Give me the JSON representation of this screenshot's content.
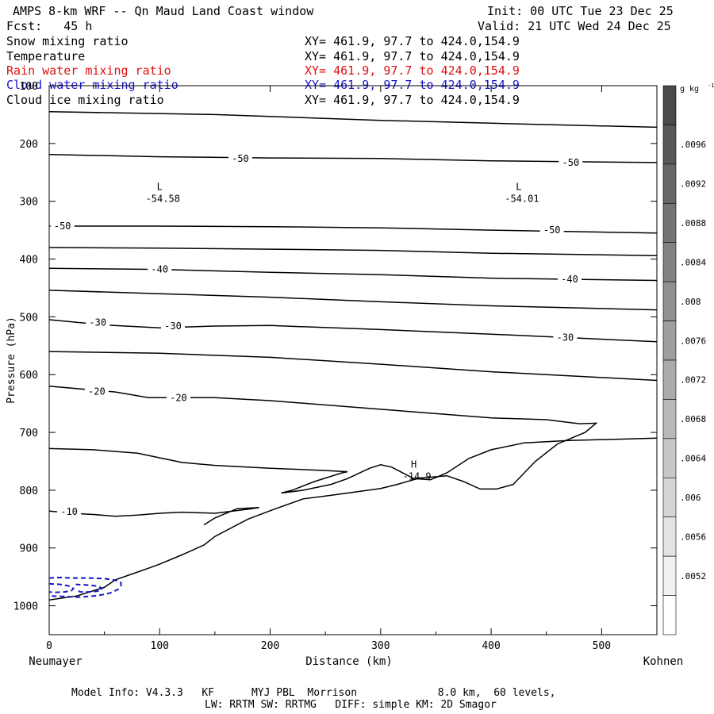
{
  "header": {
    "title": "AMPS 8-km WRF -- Qn Maud Land Coast window",
    "init": "Init: 00 UTC Tue 23 Dec 25",
    "fcst": "Fcst:   45 h",
    "valid": "Valid: 21 UTC Wed 24 Dec 25"
  },
  "variables": [
    {
      "name": "Snow mixing ratio",
      "xy": "XY= 461.9, 97.7 to 424.0,154.9",
      "color": "#000000"
    },
    {
      "name": "Temperature",
      "xy": "XY= 461.9, 97.7 to 424.0,154.9",
      "color": "#000000"
    },
    {
      "name": "Rain water mixing ratio",
      "xy": "XY= 461.9, 97.7 to 424.0,154.9",
      "color": "#e01010"
    },
    {
      "name": "Cloud water mixing ratio",
      "xy": "XY= 461.9, 97.7 to 424.0,154.9",
      "color": "#1515c8"
    },
    {
      "name": "Cloud ice mixing ratio",
      "xy": "XY= 461.9, 97.7 to 424.0,154.9",
      "color": "#000000"
    }
  ],
  "chart_data": {
    "type": "line",
    "subtype": "vertical cross-section contour plot",
    "xlabel": "Distance (km)",
    "ylabel": "Pressure (hPa)",
    "xlim": [
      0,
      550
    ],
    "ylim": [
      1050,
      100
    ],
    "x_ticks": [
      0,
      100,
      200,
      300,
      400,
      500
    ],
    "y_ticks": [
      100,
      200,
      300,
      400,
      500,
      600,
      700,
      800,
      900,
      1000
    ],
    "x_start_label": "Neumayer",
    "x_end_label": "Kohnen",
    "isotherms": [
      {
        "name": "iso-150",
        "points": [
          [
            0,
            145
          ],
          [
            150,
            150
          ],
          [
            300,
            160
          ],
          [
            400,
            165
          ],
          [
            550,
            172
          ]
        ]
      },
      {
        "name": "iso-minus50-upper",
        "points": [
          [
            0,
            219
          ],
          [
            100,
            223
          ],
          [
            200,
            225
          ],
          [
            300,
            226
          ],
          [
            400,
            230
          ],
          [
            550,
            233
          ]
        ]
      },
      {
        "name": "iso-minus50-lower",
        "points": [
          [
            0,
            343
          ],
          [
            100,
            343
          ],
          [
            200,
            344
          ],
          [
            300,
            346
          ],
          [
            400,
            350
          ],
          [
            550,
            355
          ]
        ]
      },
      {
        "name": "iso-385",
        "points": [
          [
            0,
            380
          ],
          [
            100,
            381
          ],
          [
            200,
            383
          ],
          [
            300,
            385
          ],
          [
            400,
            390
          ],
          [
            550,
            394
          ]
        ]
      },
      {
        "name": "iso-minus40",
        "points": [
          [
            0,
            416
          ],
          [
            100,
            418
          ],
          [
            200,
            423
          ],
          [
            300,
            427
          ],
          [
            400,
            433
          ],
          [
            550,
            437
          ]
        ]
      },
      {
        "name": "iso-470",
        "points": [
          [
            0,
            454
          ],
          [
            100,
            460
          ],
          [
            200,
            466
          ],
          [
            300,
            474
          ],
          [
            400,
            481
          ],
          [
            550,
            488
          ]
        ]
      },
      {
        "name": "iso-minus30",
        "points": [
          [
            0,
            505
          ],
          [
            50,
            514
          ],
          [
            100,
            519
          ],
          [
            150,
            516
          ],
          [
            200,
            515
          ],
          [
            300,
            522
          ],
          [
            400,
            530
          ],
          [
            550,
            543
          ]
        ]
      },
      {
        "name": "iso-585",
        "points": [
          [
            0,
            560
          ],
          [
            100,
            563
          ],
          [
            200,
            570
          ],
          [
            300,
            582
          ],
          [
            400,
            595
          ],
          [
            550,
            610
          ]
        ]
      },
      {
        "name": "iso-minus20",
        "points": [
          [
            0,
            620
          ],
          [
            60,
            630
          ],
          [
            90,
            640
          ],
          [
            150,
            640
          ],
          [
            200,
            645
          ],
          [
            300,
            660
          ],
          [
            400,
            675
          ],
          [
            450,
            678
          ],
          [
            480,
            685
          ],
          [
            495,
            684
          ],
          [
            485,
            700
          ],
          [
            460,
            720
          ],
          [
            440,
            750
          ],
          [
            420,
            790
          ],
          [
            405,
            798
          ],
          [
            390,
            798
          ],
          [
            375,
            785
          ],
          [
            360,
            775
          ],
          [
            335,
            779
          ],
          [
            315,
            790
          ],
          [
            300,
            797
          ],
          [
            270,
            805
          ],
          [
            250,
            810
          ],
          [
            230,
            815
          ],
          [
            205,
            832
          ],
          [
            180,
            850
          ],
          [
            150,
            880
          ],
          [
            140,
            895
          ],
          [
            120,
            912
          ],
          [
            100,
            928
          ],
          [
            90,
            935
          ],
          [
            75,
            945
          ],
          [
            60,
            955
          ],
          [
            50,
            968
          ],
          [
            25,
            983
          ],
          [
            0,
            990
          ]
        ]
      },
      {
        "name": "iso-minus10",
        "points": [
          [
            0,
            836
          ],
          [
            20,
            840
          ],
          [
            40,
            842
          ],
          [
            60,
            845
          ],
          [
            80,
            843
          ],
          [
            100,
            840
          ],
          [
            120,
            838
          ],
          [
            150,
            840
          ],
          [
            180,
            833
          ],
          [
            190,
            830
          ],
          [
            170,
            832
          ],
          [
            150,
            848
          ],
          [
            140,
            860
          ]
        ]
      },
      {
        "name": "iso-lower",
        "points": [
          [
            0,
            728
          ],
          [
            40,
            730
          ],
          [
            80,
            736
          ],
          [
            120,
            752
          ],
          [
            150,
            757
          ],
          [
            200,
            762
          ],
          [
            250,
            766
          ],
          [
            270,
            768
          ],
          [
            265,
            770
          ],
          [
            240,
            785
          ],
          [
            220,
            800
          ],
          [
            210,
            805
          ],
          [
            230,
            800
          ],
          [
            255,
            790
          ],
          [
            270,
            780
          ],
          [
            290,
            762
          ],
          [
            300,
            756
          ],
          [
            310,
            760
          ],
          [
            330,
            780
          ],
          [
            345,
            782
          ],
          [
            360,
            770
          ],
          [
            380,
            745
          ],
          [
            400,
            730
          ],
          [
            430,
            718
          ],
          [
            470,
            714
          ],
          [
            550,
            710
          ]
        ]
      }
    ],
    "contour_labels": [
      {
        "text": "-50",
        "x": 173,
        "p": 226
      },
      {
        "text": "-50",
        "x": 472,
        "p": 233
      },
      {
        "text": "-50",
        "x": 12,
        "p": 343
      },
      {
        "text": "-50",
        "x": 455,
        "p": 350
      },
      {
        "text": "-40",
        "x": 100,
        "p": 418
      },
      {
        "text": "-40",
        "x": 471,
        "p": 435
      },
      {
        "text": "-30",
        "x": 44,
        "p": 510
      },
      {
        "text": "-30",
        "x": 112,
        "p": 516
      },
      {
        "text": "-30",
        "x": 467,
        "p": 536
      },
      {
        "text": "-20",
        "x": 43,
        "p": 629
      },
      {
        "text": "-20",
        "x": 117,
        "p": 640
      },
      {
        "text": "-10",
        "x": 18,
        "p": 837
      }
    ],
    "extrema": [
      {
        "kind": "L",
        "value": "-54.58",
        "x": 100,
        "p": 300
      },
      {
        "kind": "L",
        "value": "-54.01",
        "x": 425,
        "p": 300
      },
      {
        "kind": "H",
        "value": "-14.9",
        "x": 330,
        "p": 780
      }
    ],
    "cloud_water_contours": [
      {
        "name": "cw-a",
        "points": [
          [
            0,
            952
          ],
          [
            10,
            951
          ],
          [
            20,
            952
          ],
          [
            35,
            952
          ],
          [
            50,
            953
          ],
          [
            60,
            956
          ],
          [
            65,
            960
          ],
          [
            65,
            965
          ],
          [
            62,
            972
          ],
          [
            55,
            978
          ],
          [
            45,
            982
          ],
          [
            35,
            984
          ],
          [
            25,
            985
          ],
          [
            15,
            984
          ],
          [
            0,
            983
          ]
        ]
      },
      {
        "name": "cw-b",
        "points": [
          [
            0,
            962
          ],
          [
            10,
            963
          ],
          [
            18,
            966
          ],
          [
            22,
            970
          ],
          [
            20,
            974
          ],
          [
            14,
            976
          ],
          [
            5,
            977
          ],
          [
            0,
            976
          ]
        ]
      },
      {
        "name": "cw-c",
        "points": [
          [
            24,
            963
          ],
          [
            34,
            964
          ],
          [
            44,
            966
          ],
          [
            48,
            970
          ],
          [
            46,
            974
          ],
          [
            38,
            976
          ],
          [
            28,
            976
          ],
          [
            25,
            972
          ]
        ]
      }
    ],
    "colorbar": {
      "unit": "g kg",
      "unit_exponent": "-1",
      "tick_labels": [
        ".0096",
        ".0092",
        ".0088",
        ".0084",
        ".008",
        ".0076",
        ".0072",
        ".0068",
        ".0064",
        ".006",
        ".0056",
        ".0052"
      ],
      "top_color": "#4a4a4a",
      "bottom_color": "#ffffff"
    }
  },
  "footer": {
    "line1": "Model Info: V4.3.3   KF      MYJ PBL  Morrison             8.0 km,  60 levels,",
    "line2": "LW: RRTM SW: RRTMG   DIFF: simple KM: 2D Smagor"
  }
}
